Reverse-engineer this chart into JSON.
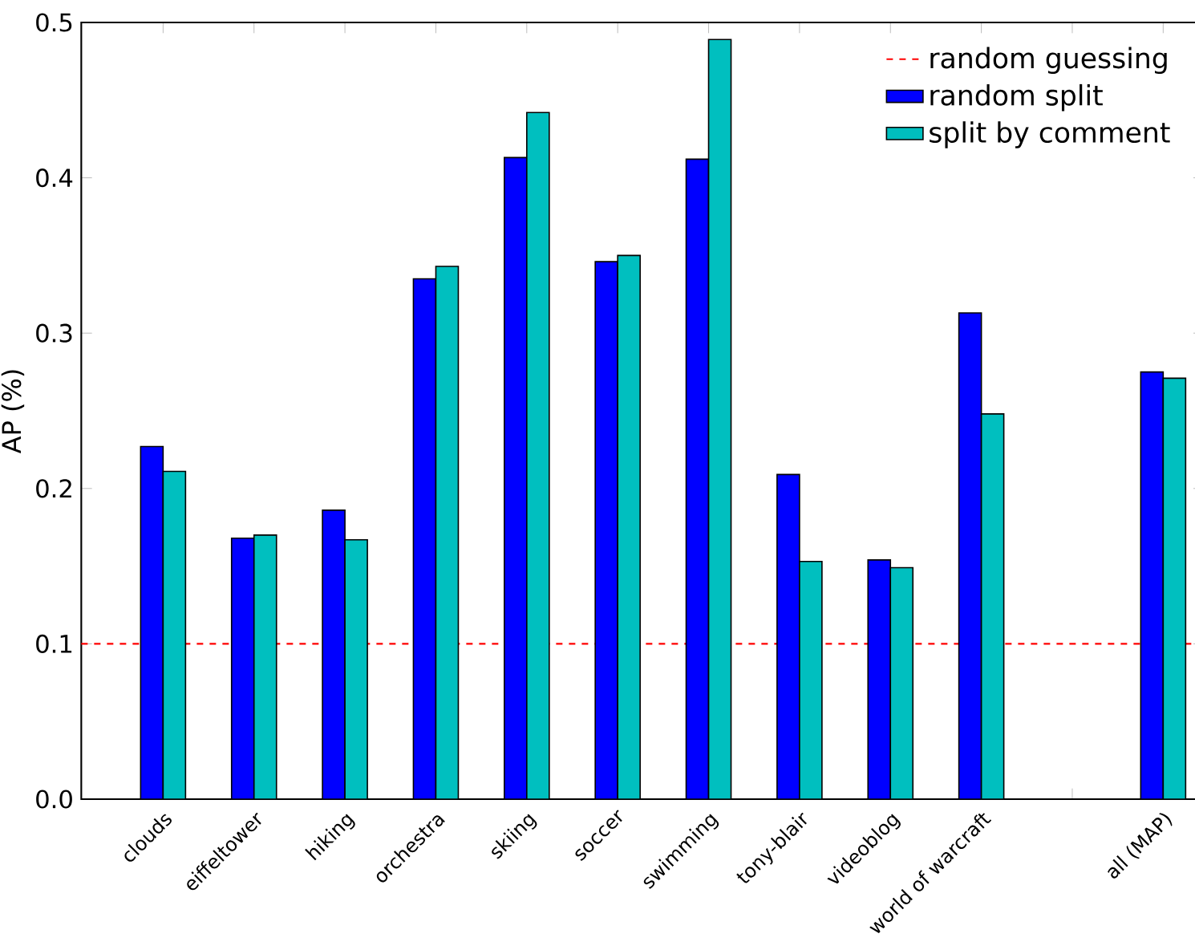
{
  "chart_data": {
    "type": "bar",
    "ylabel": "AP (%)",
    "categories": [
      "clouds",
      "eiffeltower",
      "hiking",
      "orchestra",
      "skiing",
      "soccer",
      "swimming",
      "tony-blair",
      "videoblog",
      "world of warcraft",
      null,
      "all (MAP)"
    ],
    "series": [
      {
        "name": "random split",
        "color": "#0000ff",
        "values": [
          0.227,
          0.168,
          0.186,
          0.335,
          0.413,
          0.346,
          0.412,
          0.209,
          0.154,
          0.313,
          null,
          0.275
        ]
      },
      {
        "name": "split by comment",
        "color": "#00bfbf",
        "values": [
          0.211,
          0.17,
          0.167,
          0.343,
          0.442,
          0.35,
          0.489,
          0.153,
          0.149,
          0.248,
          null,
          0.271
        ]
      }
    ],
    "ylim": [
      0,
      0.5
    ],
    "yticks": [
      {
        "value": 0,
        "label": "0.0"
      },
      0.1,
      0.2,
      0.3,
      0.4,
      0.5
    ],
    "ref_lines": [
      {
        "axis": "y",
        "value": 0.1,
        "label": "random guessing",
        "color": "#ff0000",
        "line_style": "dashed"
      }
    ],
    "legend": "top right",
    "grid": false
  }
}
